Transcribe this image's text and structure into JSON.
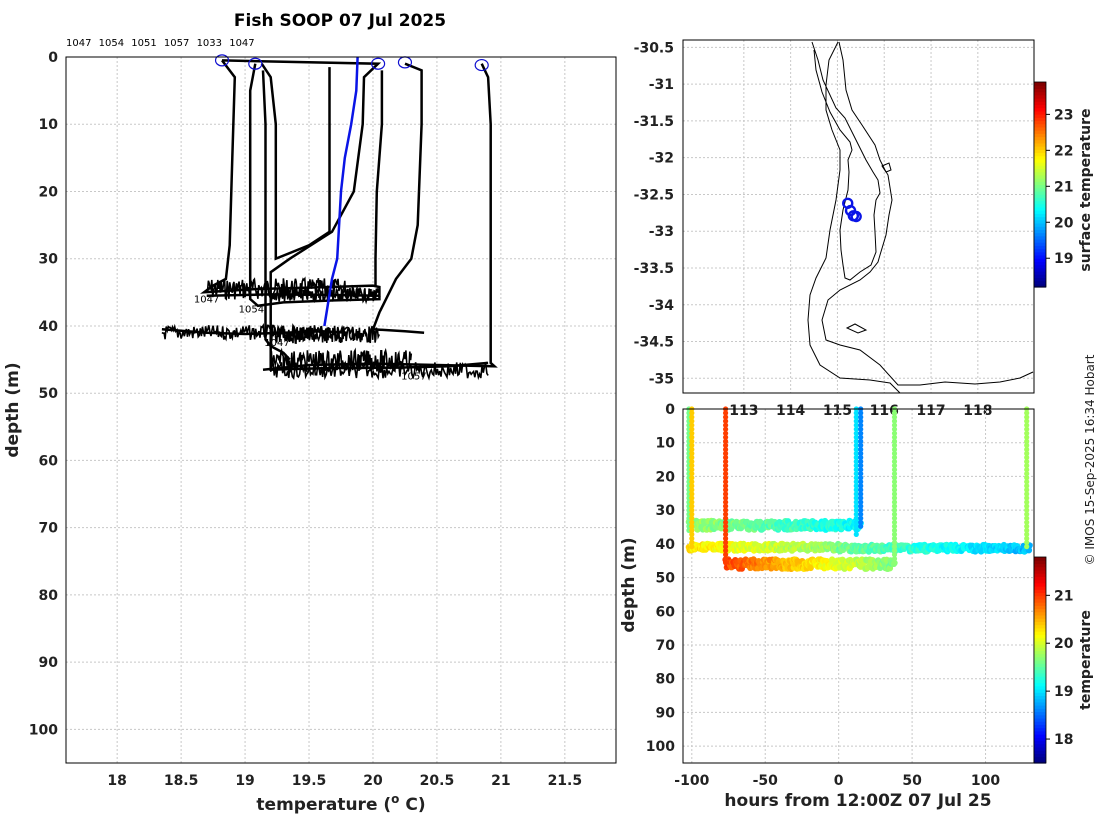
{
  "chart_data": [
    {
      "type": "line",
      "title": "Fish SOOP 07 Jul 2025",
      "xlabel": "temperature (",
      "xlabel_unit_sup": "o",
      "xlabel_tail": " C)",
      "ylabel": "depth (m)",
      "xlim": [
        17.6,
        21.9
      ],
      "ylim": [
        0,
        105
      ],
      "xticks": [
        18,
        18.5,
        19,
        19.5,
        20,
        20.5,
        21,
        21.5
      ],
      "xtick_labels": [
        "18",
        "18.5",
        "19",
        "19.5",
        "20",
        "20.5",
        "21",
        "21.5"
      ],
      "yticks": [
        0,
        10,
        20,
        30,
        40,
        50,
        60,
        70,
        80,
        90,
        100
      ],
      "ytick_labels": [
        "0",
        "10",
        "20",
        "30",
        "40",
        "50",
        "60",
        "70",
        "80",
        "90",
        "100"
      ],
      "top_labels": [
        "1047",
        "1054",
        "1051",
        "1057",
        "1033",
        "1047"
      ],
      "profile_labels": [
        {
          "text": "1047",
          "x": 18.6,
          "y": 36.5
        },
        {
          "text": "1054",
          "x": 18.95,
          "y": 38
        },
        {
          "text": "1047",
          "x": 19.15,
          "y": 43
        },
        {
          "text": "1057",
          "x": 20.22,
          "y": 48
        }
      ],
      "series": [
        {
          "name": "p1",
          "color": "#000000",
          "points": [
            [
              18.82,
              0.5
            ],
            [
              18.92,
              3
            ],
            [
              18.9,
              15
            ],
            [
              18.88,
              28
            ],
            [
              18.85,
              33
            ],
            [
              18.75,
              34
            ],
            [
              18.68,
              35
            ],
            [
              19.1,
              34.5
            ],
            [
              19.5,
              34.3
            ],
            [
              20.0,
              34.0
            ],
            [
              20.05,
              34.2
            ],
            [
              20.05,
              35.5
            ],
            [
              19.7,
              35.4
            ],
            [
              19.2,
              35.3
            ],
            [
              18.7,
              35.5
            ]
          ]
        },
        {
          "name": "p2",
          "color": "#000000",
          "points": [
            [
              19.08,
              1.0
            ],
            [
              19.04,
              5
            ],
            [
              19.04,
              15
            ],
            [
              19.04,
              30
            ],
            [
              19.04,
              36
            ],
            [
              19.1,
              37
            ],
            [
              19.3,
              36.5
            ],
            [
              19.7,
              36.2
            ],
            [
              20.05,
              36.0
            ],
            [
              20.05,
              35.6
            ]
          ]
        },
        {
          "name": "p3",
          "color": "#000000",
          "points": [
            [
              19.14,
              2
            ],
            [
              19.16,
              10
            ],
            [
              19.16,
              30
            ],
            [
              19.16,
              42
            ],
            [
              19.2,
              43
            ],
            [
              19.3,
              44
            ],
            [
              19.35,
              45
            ]
          ]
        },
        {
          "name": "p4",
          "color": "#000000",
          "points": [
            [
              19.13,
              1.0
            ],
            [
              19.2,
              3
            ],
            [
              19.24,
              10
            ],
            [
              19.24,
              25
            ],
            [
              19.24,
              30
            ],
            [
              19.5,
              28
            ],
            [
              19.66,
              26
            ],
            [
              19.66,
              15
            ],
            [
              19.66,
              1.5
            ]
          ]
        },
        {
          "name": "p5",
          "color": "#000000",
          "points": [
            [
              18.82,
              0.5
            ],
            [
              20.04,
              1.0
            ],
            [
              19.93,
              3
            ],
            [
              19.92,
              10
            ],
            [
              19.85,
              20
            ],
            [
              19.68,
              26
            ],
            [
              19.35,
              30
            ],
            [
              19.2,
              32
            ],
            [
              19.2,
              38
            ],
            [
              19.2,
              45
            ],
            [
              19.2,
              46.5
            ],
            [
              19.6,
              46.3
            ],
            [
              20.2,
              46.2
            ],
            [
              20.6,
              46.0
            ],
            [
              20.9,
              45.5
            ]
          ]
        },
        {
          "name": "p6",
          "color": "#000000",
          "points": [
            [
              20.25,
              1.0
            ],
            [
              20.38,
              2
            ],
            [
              20.38,
              10
            ],
            [
              20.35,
              25
            ],
            [
              20.3,
              30
            ],
            [
              20.18,
              33
            ],
            [
              20.05,
              38
            ],
            [
              20.0,
              40.5
            ],
            [
              20.25,
              40.8
            ],
            [
              20.4,
              41
            ]
          ]
        },
        {
          "name": "p7",
          "color": "#000000",
          "points": [
            [
              20.07,
              2
            ],
            [
              20.07,
              10
            ],
            [
              20.03,
              20
            ],
            [
              20.02,
              30
            ],
            [
              20.02,
              34
            ]
          ]
        },
        {
          "name": "p8",
          "color": "#000000",
          "points": [
            [
              20.85,
              1.0
            ],
            [
              20.9,
              3
            ],
            [
              20.92,
              10
            ],
            [
              20.92,
              25
            ],
            [
              20.92,
              45.5
            ],
            [
              20.95,
              46
            ],
            [
              20.5,
              45.8
            ],
            [
              20.0,
              45.6
            ],
            [
              19.5,
              45.8
            ],
            [
              19.14,
              46.5
            ]
          ]
        },
        {
          "name": "p9",
          "color": "#000000",
          "points": [
            [
              18.35,
              40.5
            ],
            [
              18.7,
              41
            ],
            [
              19.0,
              41.2
            ],
            [
              19.3,
              41
            ],
            [
              19.6,
              40.8
            ],
            [
              19.8,
              41
            ]
          ]
        },
        {
          "name": "mean",
          "color": "#0a14e6",
          "points": [
            [
              19.88,
              0
            ],
            [
              19.87,
              5
            ],
            [
              19.83,
              10
            ],
            [
              19.78,
              15
            ],
            [
              19.75,
              20
            ],
            [
              19.72,
              30
            ],
            [
              19.68,
              33
            ],
            [
              19.62,
              40
            ]
          ]
        }
      ],
      "noise_bands": [
        {
          "x0": 18.7,
          "x1": 19.9,
          "depth": 34.5,
          "amp": 1.6
        },
        {
          "x0": 19.2,
          "x1": 20.05,
          "depth": 35.4,
          "amp": 1.0
        },
        {
          "x0": 18.35,
          "x1": 19.85,
          "depth": 41.0,
          "amp": 1.1
        },
        {
          "x0": 19.2,
          "x1": 20.05,
          "depth": 41.3,
          "amp": 1.3
        },
        {
          "x0": 19.2,
          "x1": 20.3,
          "depth": 45.2,
          "amp": 1.6
        },
        {
          "x0": 19.2,
          "x1": 20.9,
          "depth": 46.6,
          "amp": 1.2
        }
      ],
      "surface_markers": [
        [
          18.82,
          0.5
        ],
        [
          19.08,
          1.0
        ],
        [
          20.04,
          1.0
        ],
        [
          20.25,
          0.8
        ],
        [
          20.85,
          1.2
        ]
      ]
    },
    {
      "type": "scatter",
      "ylim": [
        -35.2,
        -30.4
      ],
      "xlim": [
        111.7,
        119.2
      ],
      "yticks": [
        -30.5,
        -31,
        -31.5,
        -32,
        -32.5,
        -33,
        -33.5,
        -34,
        -34.5,
        -35
      ],
      "ytick_labels": [
        "-30.5",
        "-31",
        "-31.5",
        "-32",
        "-32.5",
        "-33",
        "-33.5",
        "-34",
        "-34.5",
        "-35"
      ],
      "xticks": [
        113,
        114,
        115,
        116,
        117,
        118
      ],
      "xtick_labels": [
        "113",
        "114",
        "115",
        "116",
        "117",
        "118"
      ],
      "positions": [
        [
          115.22,
          -32.62
        ],
        [
          115.28,
          -32.72
        ],
        [
          115.34,
          -32.79
        ],
        [
          115.4,
          -32.8
        ]
      ],
      "colorbar": {
        "label": "surface temperature",
        "min": 18.2,
        "max": 23.9,
        "ticks": [
          19,
          20,
          21,
          22,
          23
        ],
        "tick_labels": [
          "19",
          "20",
          "21",
          "22",
          "23"
        ]
      }
    },
    {
      "type": "scatter",
      "xlabel": "hours from 12:00Z 07 Jul 25",
      "ylabel": "depth (m)",
      "xlim": [
        -106,
        133
      ],
      "ylim": [
        0,
        105
      ],
      "xticks": [
        -100,
        -50,
        0,
        50,
        100
      ],
      "xtick_labels": [
        "-100",
        "-50",
        "0",
        "50",
        "100"
      ],
      "yticks": [
        0,
        10,
        20,
        30,
        40,
        50,
        60,
        70,
        80,
        90,
        100
      ],
      "ytick_labels": [
        "0",
        "10",
        "20",
        "30",
        "40",
        "50",
        "60",
        "70",
        "80",
        "90",
        "100"
      ],
      "casts": [
        {
          "x": -102,
          "d0": 0,
          "d1": 37,
          "t": 19.6
        },
        {
          "x": -100,
          "d0": 0,
          "d1": 42,
          "t": 20.4
        },
        {
          "x": -77,
          "d0": 0,
          "d1": 46,
          "t": 21.0
        },
        {
          "x": 12,
          "d0": 0,
          "d1": 38,
          "t": 19.0
        },
        {
          "x": 15,
          "d0": 0,
          "d1": 35,
          "t": 18.6
        },
        {
          "x": 38,
          "d0": 0,
          "d1": 46,
          "t": 19.7
        },
        {
          "x": 128,
          "d0": 0,
          "d1": 41,
          "t": 19.8
        }
      ],
      "bands": [
        {
          "x0": -102,
          "x1": 15,
          "depth": 34.5,
          "t0": 19.8,
          "t1": 19.1,
          "amp": 1.3
        },
        {
          "x0": -102,
          "x1": 0,
          "depth": 41.0,
          "t0": 20.3,
          "t1": 19.7,
          "amp": 1.0
        },
        {
          "x0": 0,
          "x1": 130,
          "depth": 41.3,
          "t0": 19.6,
          "t1": 18.8,
          "amp": 1.0
        },
        {
          "x0": -77,
          "x1": 38,
          "depth": 46.0,
          "t0": 21.0,
          "t1": 19.6,
          "amp": 1.4
        }
      ],
      "colorbar": {
        "label": "temperature",
        "min": 17.5,
        "max": 21.8,
        "ticks": [
          18,
          19,
          20,
          21
        ],
        "tick_labels": [
          "18",
          "19",
          "20",
          "21"
        ]
      }
    }
  ],
  "credit": "© IMOS 15-Sep-2025 16:34 Hobart"
}
